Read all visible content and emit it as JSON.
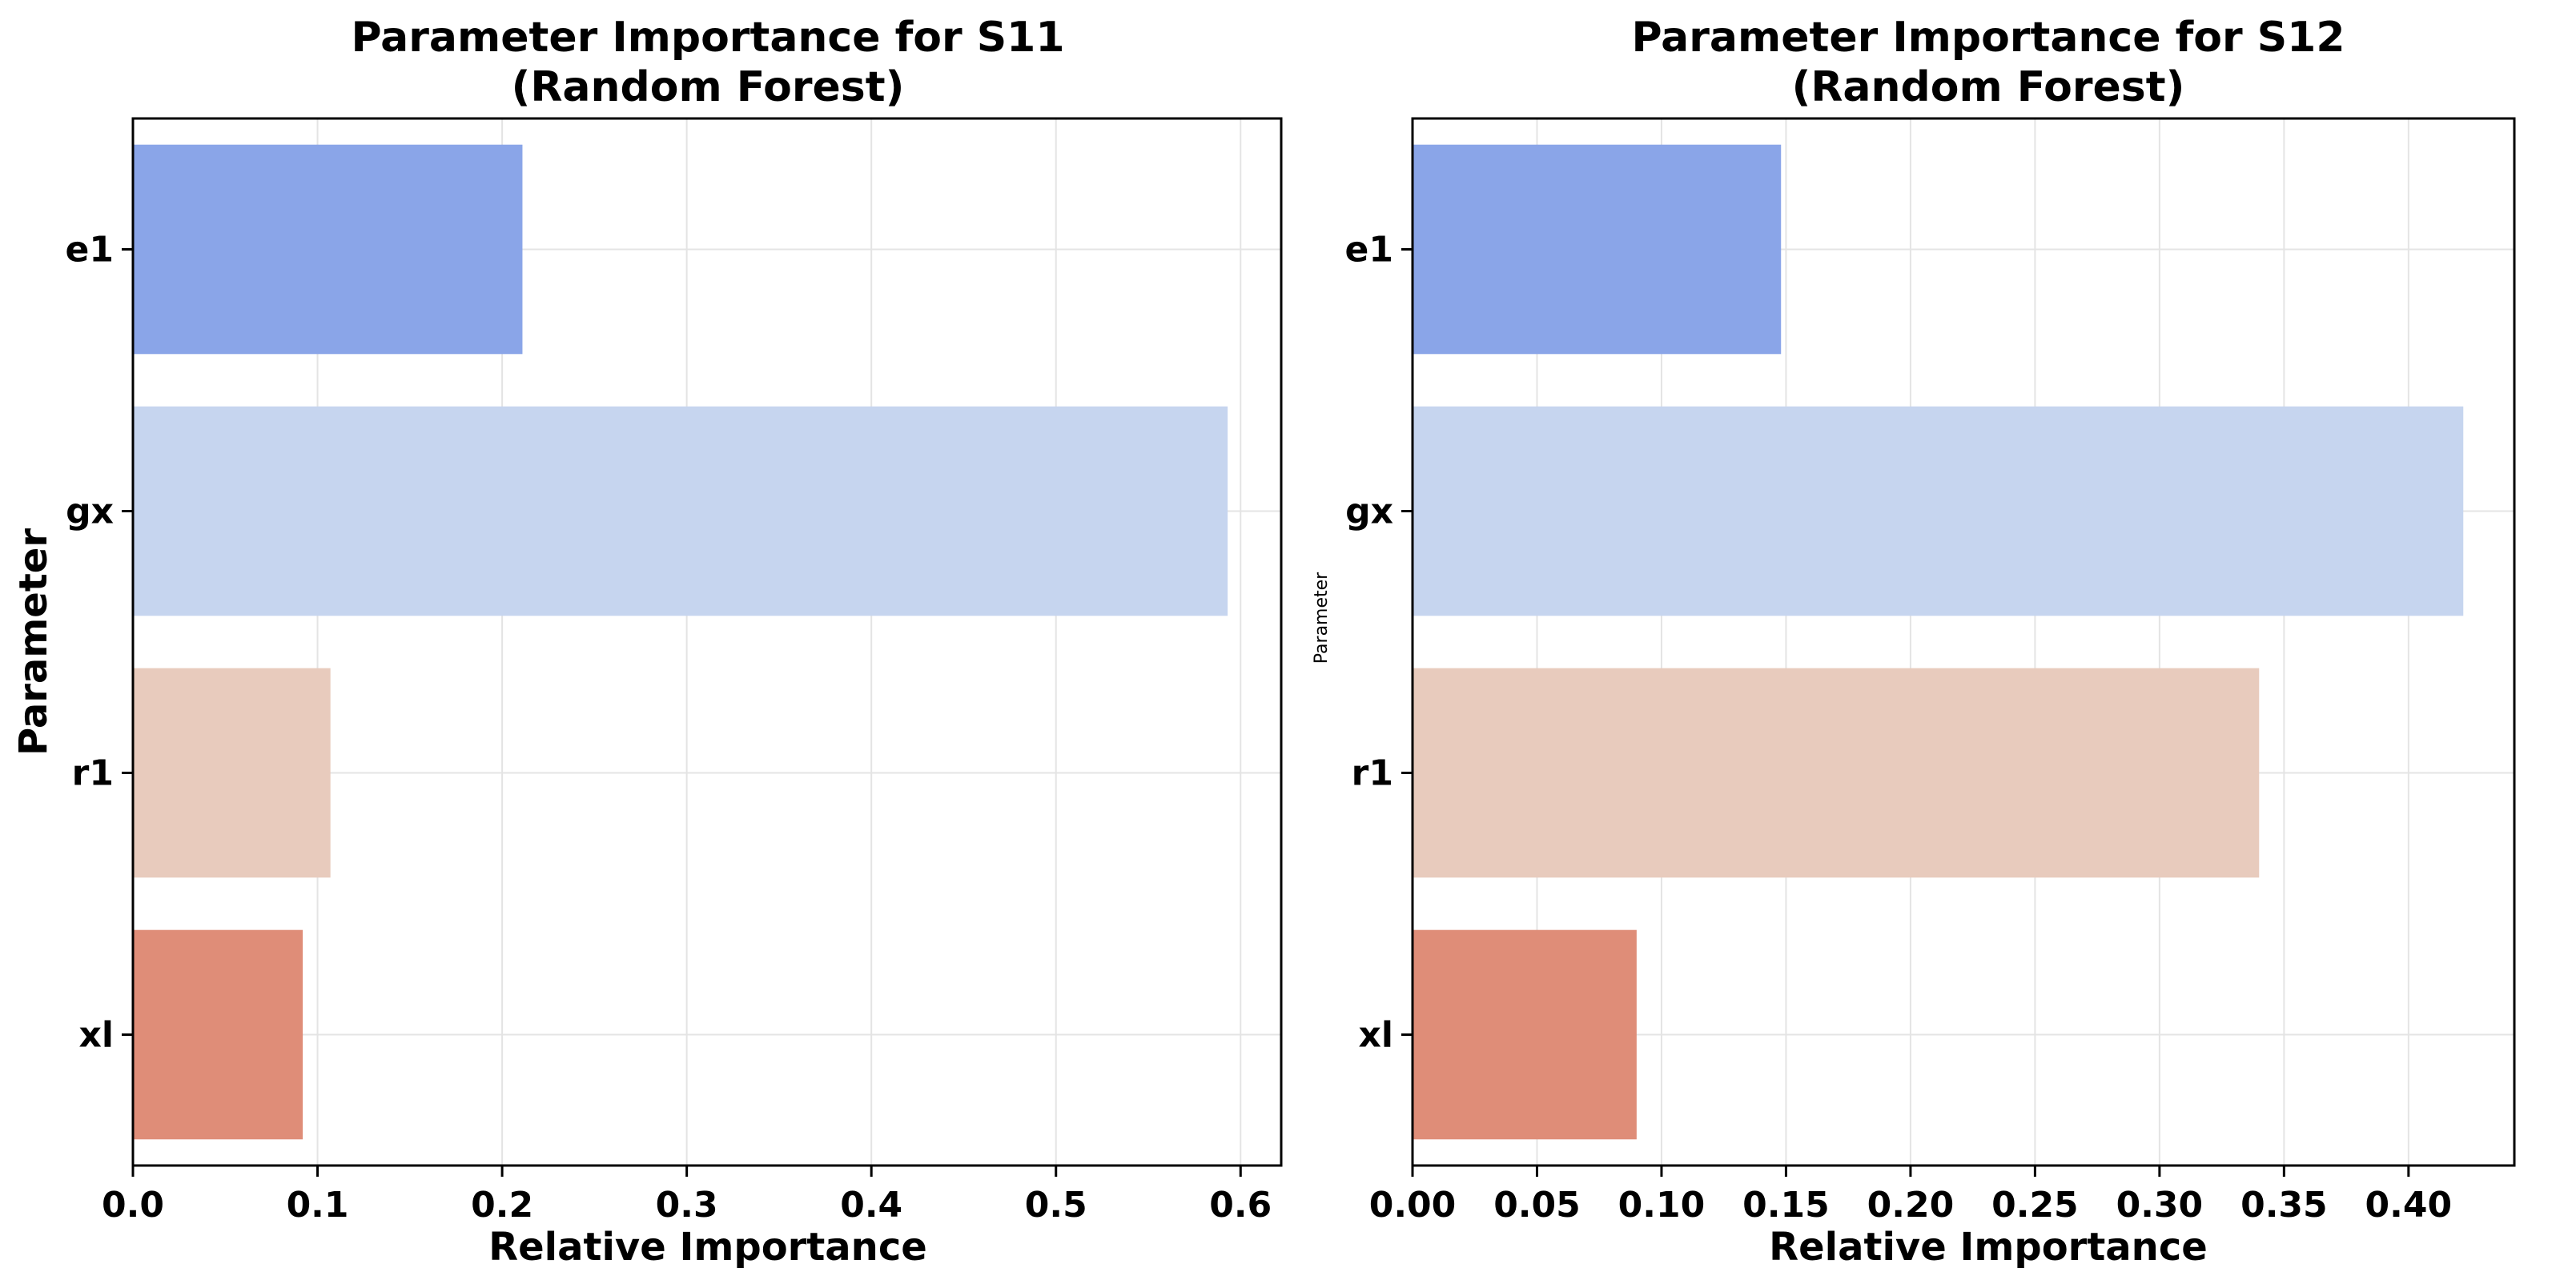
{
  "chart_data": [
    {
      "type": "bar",
      "orientation": "horizontal",
      "title_line1": "Parameter Importance for S11",
      "title_line2": "(Random Forest)",
      "xlabel": "Relative Importance",
      "ylabel": "Parameter",
      "ylabel_style": "bold",
      "categories": [
        "e1",
        "gx",
        "r1",
        "xl"
      ],
      "values": [
        0.211,
        0.593,
        0.107,
        0.092
      ],
      "xlim": [
        0,
        0.622
      ],
      "xticks": [
        0.0,
        0.1,
        0.2,
        0.3,
        0.4,
        0.5,
        0.6
      ],
      "xtick_labels": [
        "0.0",
        "0.1",
        "0.2",
        "0.3",
        "0.4",
        "0.5",
        "0.6"
      ],
      "grid": true
    },
    {
      "type": "bar",
      "orientation": "horizontal",
      "title_line1": "Parameter Importance for S12",
      "title_line2": "(Random Forest)",
      "xlabel": "Relative Importance",
      "ylabel": "Parameter",
      "ylabel_style": "small",
      "categories": [
        "e1",
        "gx",
        "r1",
        "xl"
      ],
      "values": [
        0.148,
        0.422,
        0.34,
        0.09
      ],
      "xlim": [
        0,
        0.4425
      ],
      "xticks": [
        0.0,
        0.05,
        0.1,
        0.15,
        0.2,
        0.25,
        0.3,
        0.35,
        0.4
      ],
      "xtick_labels": [
        "0.00",
        "0.05",
        "0.10",
        "0.15",
        "0.20",
        "0.25",
        "0.30",
        "0.35",
        "0.40"
      ],
      "grid": true
    }
  ],
  "colors": {
    "bars": [
      "#8aa5e8",
      "#c6d5ef",
      "#e8cbbd",
      "#df8d78"
    ]
  }
}
